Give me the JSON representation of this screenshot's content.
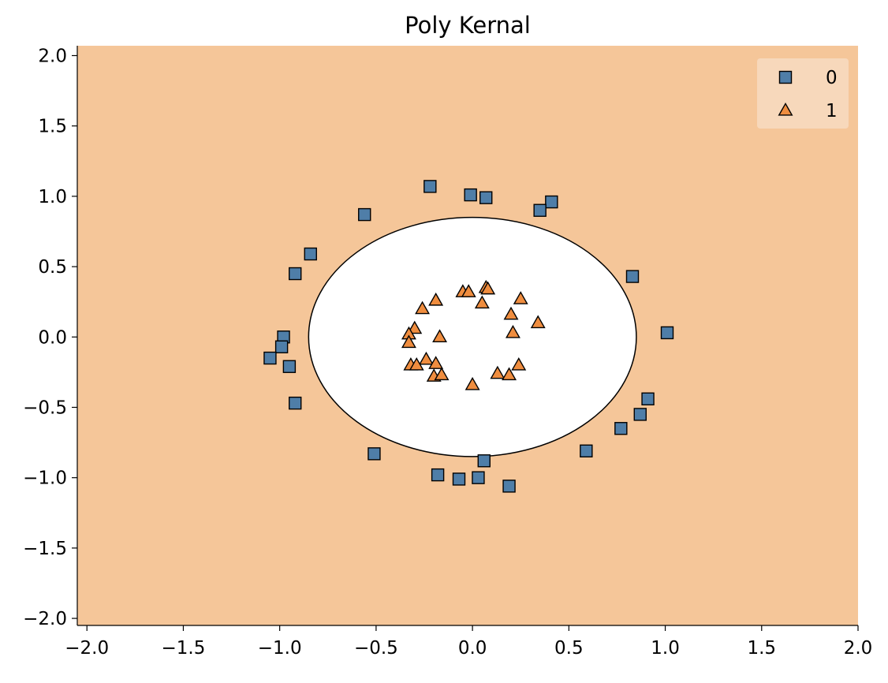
{
  "chart_data": {
    "type": "scatter",
    "title": "Poly Kernal",
    "xlabel": "",
    "ylabel": "",
    "xlim": [
      -2.05,
      2.0
    ],
    "ylim": [
      -2.05,
      2.07
    ],
    "x_ticks": [
      -2.0,
      -1.5,
      -1.0,
      -0.5,
      0.0,
      0.5,
      1.0,
      1.5,
      2.0
    ],
    "y_ticks": [
      -2.0,
      -1.5,
      -1.0,
      -0.5,
      0.0,
      0.5,
      1.0,
      1.5,
      2.0
    ],
    "x_tick_labels": [
      "−2.0",
      "−1.5",
      "−1.0",
      "−0.5",
      "0.0",
      "0.5",
      "1.0",
      "1.5",
      "2.0"
    ],
    "y_tick_labels": [
      "−2.0",
      "−1.5",
      "−1.0",
      "−0.5",
      "0.0",
      "0.5",
      "1.0",
      "1.5",
      "2.0"
    ],
    "grid": false,
    "legend_position": "top-right",
    "colors": {
      "region_class_0": "#f5c699",
      "region_class_1": "#ffffff",
      "boundary": "#000000",
      "marker_class_0": "#4f7ea8",
      "marker_class_1": "#ef8d3f",
      "marker_edge": "#000000",
      "legend_bg": "#f8dcc3"
    },
    "decision_boundary": {
      "shape": "ellipse",
      "center": [
        0.0,
        0.0
      ],
      "radius_x": 0.85,
      "radius_y": 0.85
    },
    "series": [
      {
        "name": "0",
        "marker": "square",
        "points": [
          [
            -0.22,
            1.07
          ],
          [
            -0.01,
            1.01
          ],
          [
            0.07,
            0.99
          ],
          [
            0.41,
            0.96
          ],
          [
            0.35,
            0.9
          ],
          [
            -0.56,
            0.87
          ],
          [
            -0.84,
            0.59
          ],
          [
            -0.92,
            0.45
          ],
          [
            0.83,
            0.43
          ],
          [
            1.01,
            0.03
          ],
          [
            -0.98,
            0.0
          ],
          [
            -0.99,
            -0.07
          ],
          [
            -1.05,
            -0.15
          ],
          [
            -0.95,
            -0.21
          ],
          [
            -0.92,
            -0.47
          ],
          [
            0.91,
            -0.44
          ],
          [
            0.87,
            -0.55
          ],
          [
            0.77,
            -0.65
          ],
          [
            0.59,
            -0.81
          ],
          [
            -0.51,
            -0.83
          ],
          [
            0.06,
            -0.88
          ],
          [
            -0.18,
            -0.98
          ],
          [
            -0.07,
            -1.01
          ],
          [
            0.03,
            -1.0
          ],
          [
            0.19,
            -1.06
          ]
        ]
      },
      {
        "name": "1",
        "marker": "triangle",
        "points": [
          [
            0.07,
            0.35
          ],
          [
            0.08,
            0.34
          ],
          [
            -0.05,
            0.32
          ],
          [
            -0.02,
            0.32
          ],
          [
            0.25,
            0.27
          ],
          [
            -0.19,
            0.26
          ],
          [
            0.05,
            0.24
          ],
          [
            -0.26,
            0.2
          ],
          [
            0.2,
            0.16
          ],
          [
            0.34,
            0.1
          ],
          [
            -0.3,
            0.06
          ],
          [
            -0.33,
            0.02
          ],
          [
            0.21,
            0.03
          ],
          [
            -0.17,
            0.0
          ],
          [
            -0.33,
            -0.04
          ],
          [
            -0.24,
            -0.16
          ],
          [
            -0.19,
            -0.19
          ],
          [
            -0.32,
            -0.2
          ],
          [
            -0.29,
            -0.2
          ],
          [
            0.24,
            -0.2
          ],
          [
            0.13,
            -0.26
          ],
          [
            0.19,
            -0.27
          ],
          [
            -0.2,
            -0.28
          ],
          [
            -0.16,
            -0.27
          ],
          [
            0.0,
            -0.34
          ]
        ]
      }
    ]
  }
}
